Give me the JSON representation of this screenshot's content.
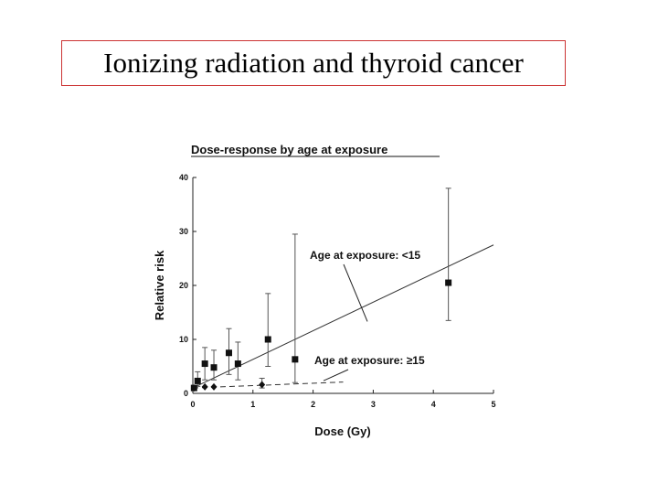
{
  "slide": {
    "title": "Ionizing radiation and thyroid cancer"
  },
  "chart_data": {
    "type": "scatter",
    "title": "Dose-response by age at exposure",
    "xlabel": "Dose (Gy)",
    "ylabel": "Relative risk",
    "xlim": [
      0,
      5
    ],
    "ylim": [
      0,
      40
    ],
    "xticks": [
      0,
      1,
      2,
      3,
      4,
      5
    ],
    "yticks": [
      0,
      10,
      20,
      30,
      40
    ],
    "series": [
      {
        "name": "Age at exposure: <15",
        "marker": "square",
        "points": [
          {
            "x": 0.02,
            "y": 1.0,
            "lo": 0.7,
            "hi": 1.3
          },
          {
            "x": 0.08,
            "y": 2.3,
            "lo": 1.3,
            "hi": 4.0
          },
          {
            "x": 0.2,
            "y": 5.5,
            "lo": 2.5,
            "hi": 8.5
          },
          {
            "x": 0.35,
            "y": 4.8,
            "lo": 2.5,
            "hi": 8.0
          },
          {
            "x": 0.6,
            "y": 7.5,
            "lo": 3.5,
            "hi": 12.0
          },
          {
            "x": 0.75,
            "y": 5.5,
            "lo": 2.5,
            "hi": 9.5
          },
          {
            "x": 1.25,
            "y": 10.0,
            "lo": 5.0,
            "hi": 18.5
          },
          {
            "x": 1.7,
            "y": 6.3,
            "lo": 2.0,
            "hi": 29.5
          },
          {
            "x": 4.25,
            "y": 20.5,
            "lo": 13.5,
            "hi": 38.0
          }
        ],
        "fit_line": {
          "x": [
            0,
            5
          ],
          "y": [
            1.0,
            27.5
          ],
          "style": "solid"
        }
      },
      {
        "name": "Age at exposure: ≥15",
        "marker": "diamond",
        "points": [
          {
            "x": 0.02,
            "y": 1.0
          },
          {
            "x": 0.2,
            "y": 1.2
          },
          {
            "x": 0.35,
            "y": 1.2
          },
          {
            "x": 1.15,
            "y": 1.6,
            "lo": 1.0,
            "hi": 2.8
          }
        ],
        "fit_line": {
          "x": [
            0,
            2.5
          ],
          "y": [
            1.0,
            2.1
          ],
          "style": "dashed"
        }
      }
    ],
    "annotations": [
      {
        "text": "Age at exposure: <15",
        "series": 0
      },
      {
        "text": "Age at exposure: ≥15",
        "series": 1
      }
    ]
  }
}
